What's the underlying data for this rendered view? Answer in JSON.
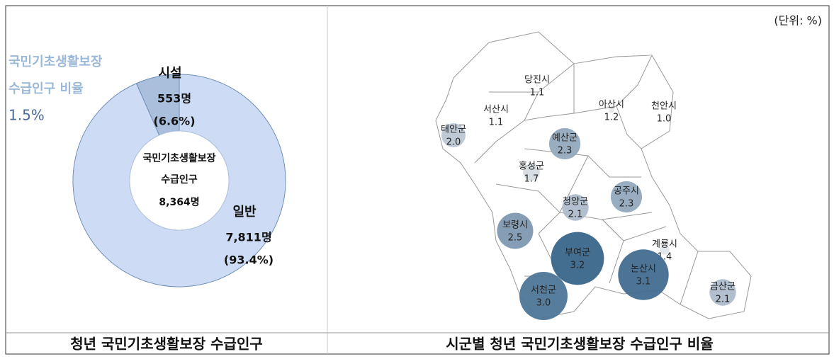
{
  "chart_data": [
    {
      "type": "donut",
      "title": "청년 국민기초생활보장 수급인구",
      "note_lines": [
        "국민기초생활보장",
        "수급인구 비율"
      ],
      "note_value": {
        "value": 1.5,
        "label": "1.5%"
      },
      "center_lines": [
        "국민기초생활보장",
        "수급인구"
      ],
      "total": {
        "value": 8364,
        "label": "8,364명"
      },
      "categories": [
        "시설",
        "일반"
      ],
      "values": [
        553,
        7811
      ],
      "value_labels": [
        "553명",
        "7,811명"
      ],
      "shares": [
        6.6,
        93.4
      ],
      "share_labels": [
        "(6.6%)",
        "(93.4%)"
      ],
      "colors": [
        "#a9bfdc",
        "#cddcf4"
      ]
    },
    {
      "type": "map",
      "title": "시군별 청년 국민기초생활보장 수급인구 비율",
      "unit": "(단위: %)",
      "regions": [
        {
          "name": "당진시",
          "value": 1.1,
          "value_label": "1.1",
          "color": "#e6e8ec"
        },
        {
          "name": "서산시",
          "value": 1.1,
          "value_label": "1.1",
          "color": "#e6e8ec"
        },
        {
          "name": "아산시",
          "value": 1.2,
          "value_label": "1.2",
          "color": "#e6e8ec"
        },
        {
          "name": "천안시",
          "value": 1.0,
          "value_label": "1.0",
          "color": "#e6e8ec"
        },
        {
          "name": "태안군",
          "value": 2.0,
          "value_label": "2.0",
          "color": "#bac7d4"
        },
        {
          "name": "예산군",
          "value": 2.3,
          "value_label": "2.3",
          "color": "#93a9bd"
        },
        {
          "name": "홍성군",
          "value": 1.7,
          "value_label": "1.7",
          "color": "#d6dbe1"
        },
        {
          "name": "청양군",
          "value": 2.1,
          "value_label": "2.1",
          "color": "#adbccb"
        },
        {
          "name": "공주시",
          "value": 2.3,
          "value_label": "2.3",
          "color": "#93a9bd"
        },
        {
          "name": "보령시",
          "value": 2.5,
          "value_label": "2.5",
          "color": "#7f99b1"
        },
        {
          "name": "부여군",
          "value": 3.2,
          "value_label": "3.2",
          "color": "#3a6689"
        },
        {
          "name": "계룡시",
          "value": 1.4,
          "value_label": "1.4",
          "color": "#e2e5e9"
        },
        {
          "name": "논산시",
          "value": 3.1,
          "value_label": "3.1",
          "color": "#416d90"
        },
        {
          "name": "서천군",
          "value": 3.0,
          "value_label": "3.0",
          "color": "#4d7697"
        },
        {
          "name": "금산군",
          "value": 2.1,
          "value_label": "2.1",
          "color": "#adbccb"
        }
      ]
    }
  ]
}
